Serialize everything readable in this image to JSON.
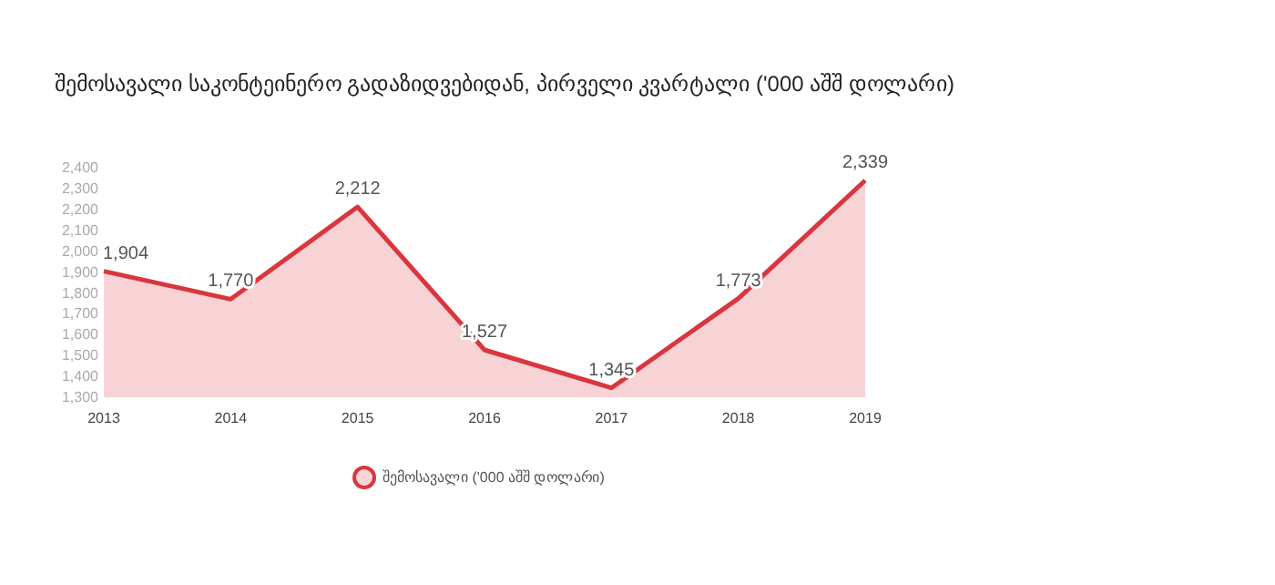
{
  "chart_data": {
    "type": "area",
    "title": "შემოსავალი საკონტეინერო გადაზიდვებიდან, პირველი კვარტალი ('000 აშშ დოლარი)",
    "categories": [
      "2013",
      "2014",
      "2015",
      "2016",
      "2017",
      "2018",
      "2019"
    ],
    "series": [
      {
        "name": "შემოსავალი ('000 აშშ დოლარი)",
        "color": "#d9363e",
        "values": [
          1904,
          1770,
          2212,
          1527,
          1345,
          1773,
          2339
        ]
      }
    ],
    "ylim": [
      1300,
      2400
    ],
    "yticks": [
      {
        "value": 1300,
        "label": "1,300"
      },
      {
        "value": 1400,
        "label": "1,400"
      },
      {
        "value": 1500,
        "label": "1,500"
      },
      {
        "value": 1600,
        "label": "1,600"
      },
      {
        "value": 1700,
        "label": "1,700"
      },
      {
        "value": 1800,
        "label": "1,800"
      },
      {
        "value": 1900,
        "label": "1,900"
      },
      {
        "value": 2000,
        "label": "2,000"
      },
      {
        "value": 2100,
        "label": "2,100"
      },
      {
        "value": 2200,
        "label": "2,200"
      },
      {
        "value": 2300,
        "label": "2,300"
      },
      {
        "value": 2400,
        "label": "2,400"
      }
    ],
    "value_labels": [
      "1,904",
      "1,770",
      "2,212",
      "1,527",
      "1,345",
      "1,773",
      "2,339"
    ],
    "legend": "bottom",
    "marker": "none",
    "line_style": "solid",
    "grid": false
  }
}
